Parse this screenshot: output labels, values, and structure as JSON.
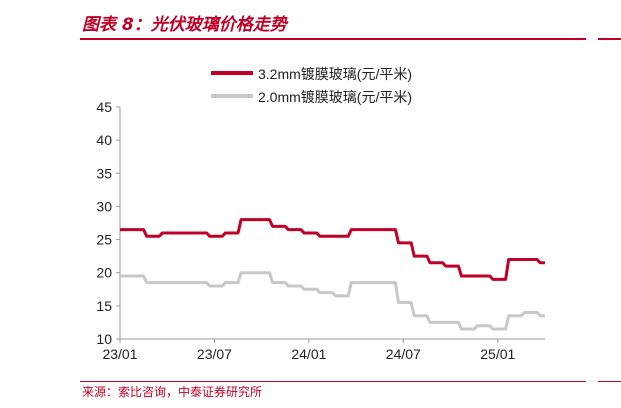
{
  "header": {
    "title": "图表 8：光伏玻璃价格走势"
  },
  "footer": {
    "source": "来源：索比咨询，中泰证券研究所"
  },
  "colors": {
    "accent": "#c00026",
    "series_32": "#c00026",
    "series_20": "#c8c8c8"
  },
  "chart_data": {
    "type": "line",
    "title": "",
    "xlabel": "",
    "ylabel": "",
    "ylim": [
      10,
      45
    ],
    "yticks": [
      "10",
      "15",
      "20",
      "25",
      "30",
      "35",
      "40",
      "45"
    ],
    "xticks": [
      "23/01",
      "23/07",
      "24/01",
      "24/07",
      "25/01"
    ],
    "grid": false,
    "legend_position": "top-right",
    "series": [
      {
        "name": "3.2mm镀膜玻璃(元/平米)",
        "points": [
          [
            "23/01",
            26.5
          ],
          [
            "23/02",
            26.5
          ],
          [
            "23/03",
            25.5
          ],
          [
            "23/04",
            26.0
          ],
          [
            "23/05",
            26.0
          ],
          [
            "23/06",
            26.0
          ],
          [
            "23/07",
            25.5
          ],
          [
            "23/08",
            26.0
          ],
          [
            "23/09",
            28.0
          ],
          [
            "23/10",
            28.0
          ],
          [
            "23/11",
            27.0
          ],
          [
            "23/12",
            26.5
          ],
          [
            "24/01",
            26.0
          ],
          [
            "24/02",
            25.5
          ],
          [
            "24/03",
            25.5
          ],
          [
            "24/04",
            26.5
          ],
          [
            "24/05",
            26.5
          ],
          [
            "24/06",
            26.5
          ],
          [
            "24/07",
            24.5
          ],
          [
            "24/08",
            22.5
          ],
          [
            "24/09",
            21.5
          ],
          [
            "24/10",
            21.0
          ],
          [
            "24/11",
            19.5
          ],
          [
            "24/12",
            19.5
          ],
          [
            "25/01",
            19.0
          ],
          [
            "25/02",
            22.0
          ],
          [
            "25/03",
            22.0
          ],
          [
            "25/04",
            21.5
          ]
        ]
      },
      {
        "name": "2.0mm镀膜玻璃(元/平米)",
        "points": [
          [
            "23/01",
            19.5
          ],
          [
            "23/02",
            19.5
          ],
          [
            "23/03",
            18.5
          ],
          [
            "23/04",
            18.5
          ],
          [
            "23/05",
            18.5
          ],
          [
            "23/06",
            18.5
          ],
          [
            "23/07",
            18.0
          ],
          [
            "23/08",
            18.5
          ],
          [
            "23/09",
            20.0
          ],
          [
            "23/10",
            20.0
          ],
          [
            "23/11",
            18.5
          ],
          [
            "23/12",
            18.0
          ],
          [
            "24/01",
            17.5
          ],
          [
            "24/02",
            17.0
          ],
          [
            "24/03",
            16.5
          ],
          [
            "24/04",
            18.5
          ],
          [
            "24/05",
            18.5
          ],
          [
            "24/06",
            18.5
          ],
          [
            "24/07",
            15.5
          ],
          [
            "24/08",
            13.5
          ],
          [
            "24/09",
            12.5
          ],
          [
            "24/10",
            12.5
          ],
          [
            "24/11",
            11.5
          ],
          [
            "24/12",
            12.0
          ],
          [
            "25/01",
            11.5
          ],
          [
            "25/02",
            13.5
          ],
          [
            "25/03",
            14.0
          ],
          [
            "25/04",
            13.5
          ]
        ]
      }
    ]
  }
}
